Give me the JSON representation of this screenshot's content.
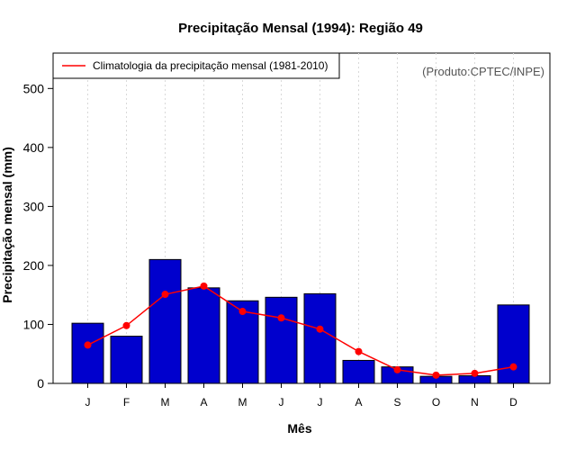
{
  "chart_data": {
    "type": "bar",
    "title": "Precipitação Mensal (1994): Região 49",
    "xlabel": "Mês",
    "ylabel": "Precipitação mensal (mm)",
    "ylim": [
      0,
      560
    ],
    "yticks": [
      0,
      100,
      200,
      300,
      400,
      500
    ],
    "categories": [
      "J",
      "F",
      "M",
      "A",
      "M",
      "J",
      "J",
      "A",
      "S",
      "O",
      "N",
      "D"
    ],
    "series": [
      {
        "name": "Precipitação mensal 1994",
        "kind": "bar",
        "color": "#0000cd",
        "values": [
          102,
          80,
          210,
          162,
          140,
          146,
          152,
          39,
          28,
          12,
          13,
          133
        ]
      },
      {
        "name": "Climatologia da precipitação mensal (1981-2010)",
        "kind": "line",
        "color": "#ff0000",
        "values": [
          65,
          98,
          151,
          165,
          122,
          111,
          92,
          54,
          23,
          14,
          17,
          28
        ]
      }
    ],
    "legend": {
      "entries": [
        "Climatologia da precipitação mensal (1981-2010)"
      ],
      "position": "top-left"
    },
    "credit": "(Produto:CPTEC/INPE)",
    "grid": "vertical dotted"
  }
}
